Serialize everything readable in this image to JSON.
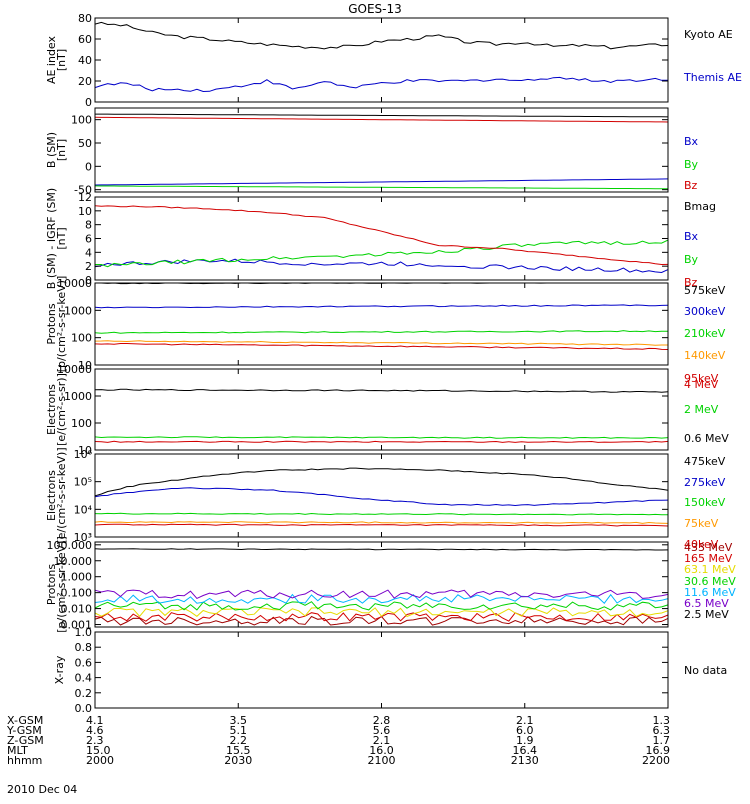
{
  "title": "GOES-13",
  "date": "2010 Dec 04",
  "orbit": {
    "labels": [
      "X-GSM",
      "Y-GSM",
      "Z-GSM",
      "MLT",
      "hhmm"
    ],
    "columns": [
      [
        "4.1",
        "4.6",
        "2.3",
        "15.0",
        "2000"
      ],
      [
        "3.5",
        "5.1",
        "2.2",
        "15.5",
        "2030"
      ],
      [
        "2.8",
        "5.6",
        "2.1",
        "16.0",
        "2100"
      ],
      [
        "2.1",
        "6.0",
        "1.9",
        "16.4",
        "2130"
      ],
      [
        "1.3",
        "6.3",
        "1.7",
        "16.9",
        "2200"
      ]
    ]
  },
  "colors": {
    "black": "#000000",
    "blue": "#0000c8",
    "green": "#00d200",
    "red": "#d20000",
    "orange": "#ff9900",
    "darkred": "#a00000",
    "yellow": "#e6dc00",
    "cyan": "#00b4ff",
    "purple": "#7800c8",
    "teal": "#00a0a0"
  },
  "chart_data": [
    {
      "type": "line",
      "ylabel": "AE index\n[nT]",
      "ylim": [
        0,
        80
      ],
      "yticks": [
        "0",
        "20",
        "40",
        "60",
        "80"
      ],
      "legend": [
        "Kyoto AE",
        "Themis AE"
      ],
      "series": [
        {
          "name": "Kyoto AE",
          "color": "black",
          "x": [
            2000,
            2010,
            2020,
            2030,
            2040,
            2050,
            2060,
            2070,
            2080,
            2090,
            2100,
            2110,
            2120,
            2130,
            2140,
            2150,
            2160,
            2170,
            2180,
            2200
          ],
          "values": [
            75,
            73,
            66,
            62,
            60,
            57,
            55,
            53,
            52,
            53,
            58,
            60,
            63,
            57,
            55,
            57,
            53,
            54,
            52,
            55
          ]
        },
        {
          "name": "Themis AE",
          "color": "blue",
          "x": [
            2000,
            2010,
            2020,
            2030,
            2040,
            2050,
            2060,
            2070,
            2080,
            2090,
            2100,
            2110,
            2120,
            2130,
            2140,
            2150,
            2160,
            2170,
            2180,
            2200
          ],
          "values": [
            15,
            18,
            12,
            12,
            11,
            15,
            20,
            12,
            20,
            13,
            18,
            20,
            20,
            20,
            22,
            20,
            24,
            21,
            20,
            22
          ]
        }
      ]
    },
    {
      "type": "line",
      "ylabel": "B (SM)\n[nT]",
      "ylim": [
        -55,
        125
      ],
      "yticks": [
        "-50",
        "0",
        "50",
        "100"
      ],
      "legend": [
        "Bx",
        "By",
        "Bz",
        "Bmag"
      ],
      "series": [
        {
          "name": "Bx",
          "color": "blue",
          "x": [
            2000,
            2200
          ],
          "values": [
            -40,
            -27
          ]
        },
        {
          "name": "By",
          "color": "green",
          "x": [
            2000,
            2200
          ],
          "values": [
            -42,
            -48
          ]
        },
        {
          "name": "Bz",
          "color": "red",
          "x": [
            2000,
            2200
          ],
          "values": [
            105,
            95
          ]
        },
        {
          "name": "Bmag",
          "color": "black",
          "x": [
            2000,
            2200
          ],
          "values": [
            112,
            106
          ]
        }
      ]
    },
    {
      "type": "line",
      "ylabel": "B (SM) - IGRF (SM)\n[nT]",
      "ylim": [
        0,
        12
      ],
      "yticks": [
        "0",
        "2",
        "4",
        "6",
        "8",
        "10",
        "12"
      ],
      "legend": [
        "Bx",
        "By",
        "Bz"
      ],
      "series": [
        {
          "name": "Bx",
          "color": "blue",
          "x": [
            2000,
            2020,
            2040,
            2060,
            2080,
            2100,
            2120,
            2140,
            2160,
            2180,
            2200
          ],
          "values": [
            2.2,
            2.5,
            2.8,
            2.6,
            2.3,
            2.4,
            2.2,
            1.9,
            1.7,
            1.5,
            1.2
          ]
        },
        {
          "name": "By",
          "color": "green",
          "x": [
            2000,
            2020,
            2040,
            2060,
            2080,
            2100,
            2120,
            2140,
            2160,
            2180,
            2200
          ],
          "values": [
            2.0,
            2.4,
            2.8,
            3.1,
            3.4,
            3.7,
            4.1,
            4.8,
            5.2,
            5.4,
            5.5
          ]
        },
        {
          "name": "Bz",
          "color": "red",
          "x": [
            2000,
            2020,
            2040,
            2060,
            2080,
            2100,
            2120,
            2140,
            2160,
            2180,
            2200
          ],
          "values": [
            10.7,
            10.6,
            10.3,
            9.8,
            9.0,
            7.0,
            5.0,
            4.6,
            3.8,
            3.0,
            2.2
          ]
        }
      ]
    },
    {
      "type": "line",
      "ylog": true,
      "ylabel": "Protons\n[p/(cm²-s-sr-keV)]",
      "ylim": [
        10,
        10000
      ],
      "yticks": [
        "10",
        "100",
        "1000",
        "10000"
      ],
      "legend": [
        "575keV",
        "300keV",
        "210keV",
        "140keV",
        "95keV"
      ],
      "series": [
        {
          "name": "575keV",
          "color": "black",
          "x": [
            2000,
            2200
          ],
          "values": [
            9800,
            10500
          ]
        },
        {
          "name": "300keV",
          "color": "blue",
          "x": [
            2000,
            2200
          ],
          "values": [
            1250,
            1550
          ]
        },
        {
          "name": "210keV",
          "color": "green",
          "x": [
            2000,
            2200
          ],
          "values": [
            150,
            175
          ]
        },
        {
          "name": "140keV",
          "color": "orange",
          "x": [
            2000,
            2200
          ],
          "values": [
            75,
            55
          ]
        },
        {
          "name": "95keV",
          "color": "red",
          "x": [
            2000,
            2200
          ],
          "values": [
            60,
            38
          ]
        }
      ]
    },
    {
      "type": "line",
      "ylog": true,
      "ylabel": "Electrons\n[e/(cm²-s-sr)]",
      "ylim": [
        10,
        10000
      ],
      "yticks": [
        "10",
        "100",
        "1000",
        "10000"
      ],
      "legend": [
        "4 MeV",
        "2 MeV",
        "0.6 MeV"
      ],
      "series": [
        {
          "name": "4 MeV",
          "color": "red",
          "x": [
            2000,
            2200
          ],
          "values": [
            20,
            20
          ]
        },
        {
          "name": "2 MeV",
          "color": "green",
          "x": [
            2000,
            2200
          ],
          "values": [
            30,
            28
          ]
        },
        {
          "name": "0.6 MeV",
          "color": "black",
          "x": [
            2000,
            2050,
            2100,
            2150,
            2200
          ],
          "values": [
            1700,
            1650,
            1600,
            1500,
            1400
          ]
        }
      ]
    },
    {
      "type": "line",
      "ylog": true,
      "ylabel": "Electrons\n[e/(cm²-s-sr-keV)]",
      "ylim": [
        1000,
        1000000
      ],
      "yticks": [
        "10³",
        "10⁴",
        "10⁵",
        "10⁶"
      ],
      "legend": [
        "475keV",
        "275keV",
        "150keV",
        "75keV",
        "40keV"
      ],
      "series": [
        {
          "name": "475keV",
          "color": "black",
          "x": [
            2000,
            2030,
            2060,
            2090,
            2120,
            2150,
            2180,
            2200
          ],
          "values": [
            30000,
            120000,
            250000,
            300000,
            260000,
            180000,
            80000,
            50000
          ]
        },
        {
          "name": "275keV",
          "color": "blue",
          "x": [
            2000,
            2030,
            2060,
            2090,
            2120,
            2150,
            2180,
            2200
          ],
          "values": [
            28000,
            60000,
            50000,
            25000,
            15000,
            14000,
            18000,
            22000
          ]
        },
        {
          "name": "150keV",
          "color": "green",
          "x": [
            2000,
            2200
          ],
          "values": [
            7000,
            6500
          ]
        },
        {
          "name": "75keV",
          "color": "orange",
          "x": [
            2000,
            2200
          ],
          "values": [
            3500,
            3200
          ]
        },
        {
          "name": "40keV",
          "color": "red",
          "x": [
            2000,
            2200
          ],
          "values": [
            2800,
            2600
          ]
        }
      ]
    },
    {
      "type": "line",
      "ylog": true,
      "ylabel": "Protons\n[p/(cm²-s-sr-keV)]",
      "ylim": [
        0.0007,
        150
      ],
      "yticks": [
        "0.001",
        "0.010",
        "0.100",
        "1.000",
        "10.000",
        "100.000"
      ],
      "legend": [
        "433 MeV",
        "165 MeV",
        "63.1 MeV",
        "30.6 MeV",
        "11.6 MeV",
        "6.5 MeV",
        "2.5 MeV"
      ],
      "series": [
        {
          "name": "433 MeV",
          "color": "darkred",
          "x": [
            2000,
            2200
          ],
          "values": [
            0.0017,
            0.0017
          ]
        },
        {
          "name": "165 MeV",
          "color": "red",
          "x": [
            2000,
            2200
          ],
          "values": [
            0.003,
            0.003
          ]
        },
        {
          "name": "63.1 MeV",
          "color": "yellow",
          "x": [
            2000,
            2200
          ],
          "values": [
            0.006,
            0.006
          ]
        },
        {
          "name": "30.6 MeV",
          "color": "green",
          "x": [
            2000,
            2200
          ],
          "values": [
            0.015,
            0.015
          ]
        },
        {
          "name": "11.6 MeV",
          "color": "cyan",
          "x": [
            2000,
            2200
          ],
          "values": [
            0.04,
            0.04
          ]
        },
        {
          "name": "6.5 MeV",
          "color": "purple",
          "x": [
            2000,
            2200
          ],
          "values": [
            0.08,
            0.08
          ]
        },
        {
          "name": "2.5 MeV",
          "color": "black",
          "x": [
            2000,
            2200
          ],
          "values": [
            55,
            48
          ]
        }
      ]
    },
    {
      "type": "line",
      "ylabel": "X-ray",
      "ylim": [
        0,
        1
      ],
      "yticks": [
        "0.0",
        "0.2",
        "0.4",
        "0.6",
        "0.8",
        "1.0"
      ],
      "legend": [
        "No data"
      ],
      "series": []
    }
  ]
}
